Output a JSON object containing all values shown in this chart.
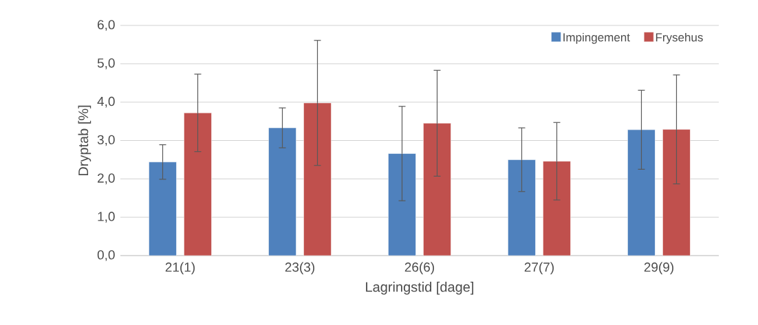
{
  "chart_data": {
    "type": "bar",
    "xlabel": "Lagringstid [dage]",
    "ylabel": "Dryptab [%]",
    "categories": [
      "21(1)",
      "23(3)",
      "26(6)",
      "27(7)",
      "29(9)"
    ],
    "series": [
      {
        "name": "Impingement",
        "color": "#4f81bd",
        "values": [
          2.44,
          3.33,
          2.66,
          2.5,
          3.28
        ],
        "errors": [
          0.45,
          0.52,
          1.23,
          0.83,
          1.03
        ]
      },
      {
        "name": "Frysehus",
        "color": "#c0504d",
        "values": [
          3.72,
          3.98,
          3.45,
          2.46,
          3.29
        ],
        "errors": [
          1.01,
          1.63,
          1.38,
          1.01,
          1.42
        ]
      }
    ],
    "ylim": [
      0,
      6
    ],
    "yticks": [
      {
        "value": 0,
        "label": "0,0"
      },
      {
        "value": 1,
        "label": "1,0"
      },
      {
        "value": 2,
        "label": "2,0"
      },
      {
        "value": 3,
        "label": "3,0"
      },
      {
        "value": 4,
        "label": "4,0"
      },
      {
        "value": 5,
        "label": "5,0"
      },
      {
        "value": 6,
        "label": "6,0"
      }
    ],
    "grid": "y",
    "legend": "top right"
  }
}
